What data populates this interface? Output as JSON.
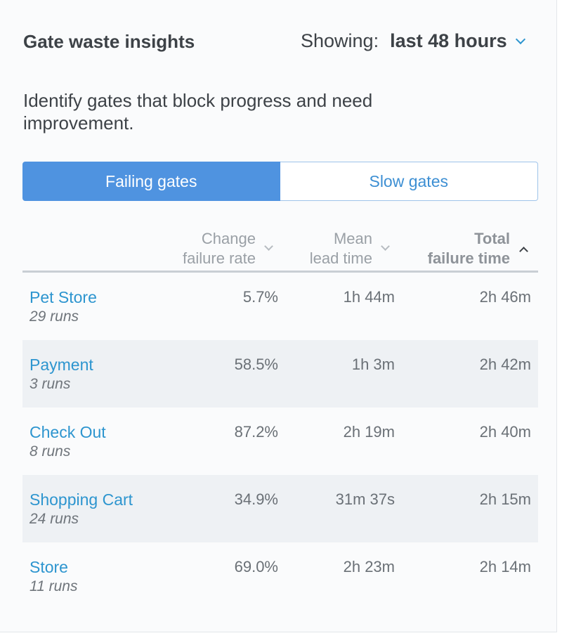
{
  "header": {
    "title": "Gate waste insights",
    "showing_label": "Showing:",
    "showing_value": "last 48 hours"
  },
  "description": "Identify gates that block progress and need improvement.",
  "tabs": [
    {
      "label": "Failing gates",
      "active": true
    },
    {
      "label": "Slow gates",
      "active": false
    }
  ],
  "columns": {
    "change_failure_rate": {
      "line1": "Change",
      "line2": "failure rate"
    },
    "mean_lead_time": {
      "line1": "Mean",
      "line2": "lead time"
    },
    "total_failure_time": {
      "line1": "Total",
      "line2": "failure time"
    }
  },
  "rows": [
    {
      "name": "Pet Store",
      "runs": "29 runs",
      "change_failure_rate": "5.7%",
      "mean_lead_time": "1h 44m",
      "total_failure_time": "2h 46m"
    },
    {
      "name": "Payment",
      "runs": "3 runs",
      "change_failure_rate": "58.5%",
      "mean_lead_time": "1h 3m",
      "total_failure_time": "2h 42m"
    },
    {
      "name": "Check Out",
      "runs": "8 runs",
      "change_failure_rate": "87.2%",
      "mean_lead_time": "2h 19m",
      "total_failure_time": "2h 40m"
    },
    {
      "name": "Shopping Cart",
      "runs": "24 runs",
      "change_failure_rate": "34.9%",
      "mean_lead_time": "31m 37s",
      "total_failure_time": "2h 15m"
    },
    {
      "name": "Store",
      "runs": "11 runs",
      "change_failure_rate": "69.0%",
      "mean_lead_time": "2h 23m",
      "total_failure_time": "2h 14m"
    }
  ],
  "colors": {
    "accent": "#4f93e0",
    "link": "#2d95cf",
    "alt_row": "#eef1f4"
  },
  "icons": {
    "range_dropdown": "chevron-down-icon",
    "sort_inactive": "chevron-down-icon",
    "sort_active": "chevron-up-icon"
  }
}
